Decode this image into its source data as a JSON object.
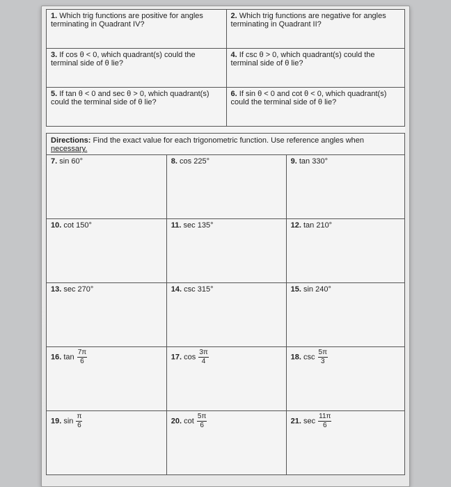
{
  "topQuestions": [
    {
      "num": "1.",
      "text": "Which trig functions are positive for angles terminating in Quadrant IV?"
    },
    {
      "num": "2.",
      "text": "Which trig functions are negative for angles terminating in Quadrant II?"
    },
    {
      "num": "3.",
      "text": "If cos θ < 0, which quadrant(s) could the terminal side of θ lie?"
    },
    {
      "num": "4.",
      "text": "If csc θ > 0, which quadrant(s) could the terminal side of θ lie?"
    },
    {
      "num": "5.",
      "text": "If tan θ < 0 and sec θ > 0, which quadrant(s) could the terminal side of θ lie?"
    },
    {
      "num": "6.",
      "text": "If sin θ < 0 and cot θ < 0, which quadrant(s) could the terminal side of θ lie?"
    }
  ],
  "directions": {
    "label": "Directions:",
    "text": "Find the exact value for each trigonometric function.  Use reference angles when",
    "necessary": "necessary."
  },
  "exact": {
    "r1": [
      {
        "num": "7.",
        "label": "sin 60°"
      },
      {
        "num": "8.",
        "label": "cos 225°"
      },
      {
        "num": "9.",
        "label": "tan 330°"
      }
    ],
    "r2": [
      {
        "num": "10.",
        "label": "cot 150°"
      },
      {
        "num": "11.",
        "label": "sec 135°"
      },
      {
        "num": "12.",
        "label": "tan 210°"
      }
    ],
    "r3": [
      {
        "num": "13.",
        "label": "sec 270°"
      },
      {
        "num": "14.",
        "label": "csc 315°"
      },
      {
        "num": "15.",
        "label": "sin 240°"
      }
    ],
    "r4": [
      {
        "num": "16.",
        "fn": "tan",
        "top": "7π",
        "bot": "6"
      },
      {
        "num": "17.",
        "fn": "cos",
        "top": "3π",
        "bot": "4"
      },
      {
        "num": "18.",
        "fn": "csc",
        "top": "5π",
        "bot": "3"
      }
    ],
    "r5": [
      {
        "num": "19.",
        "fn": "sin",
        "top": "π",
        "bot": "6"
      },
      {
        "num": "20.",
        "fn": "cot",
        "top": "5π",
        "bot": "6"
      },
      {
        "num": "21.",
        "fn": "sec",
        "top": "11π",
        "bot": "6"
      }
    ]
  }
}
